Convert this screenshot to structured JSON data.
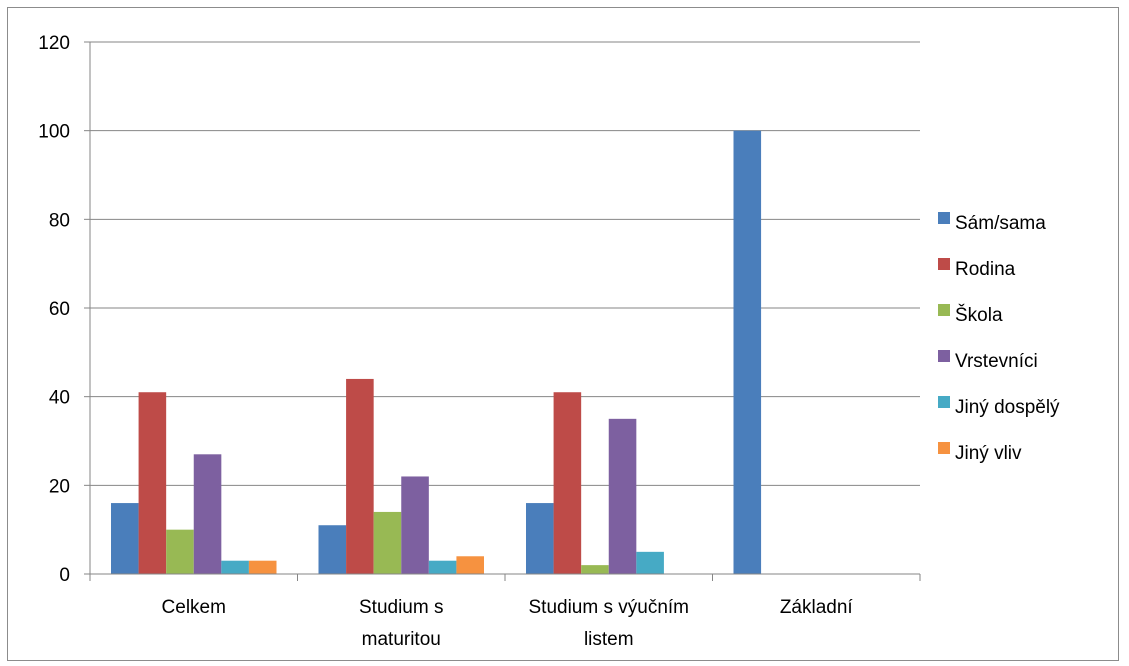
{
  "chart_data": {
    "type": "bar",
    "title": "",
    "xlabel": "",
    "ylabel": "",
    "ylim": [
      0,
      120
    ],
    "yticks": [
      0,
      20,
      40,
      60,
      80,
      100,
      120
    ],
    "grid": true,
    "legend_position": "right",
    "categories": [
      [
        "Celkem"
      ],
      [
        "Studium s",
        "maturitou"
      ],
      [
        "Studium s výučním",
        "listem"
      ],
      [
        "Základní"
      ]
    ],
    "series": [
      {
        "name": "Sám/sama",
        "color": "#4a7ebb",
        "values": [
          16,
          11,
          16,
          100
        ]
      },
      {
        "name": "Rodina",
        "color": "#be4b48",
        "values": [
          41,
          44,
          41,
          0
        ]
      },
      {
        "name": "Škola",
        "color": "#98b954",
        "values": [
          10,
          14,
          2,
          0
        ]
      },
      {
        "name": "Vrstevníci",
        "color": "#7d60a0",
        "values": [
          27,
          22,
          35,
          0
        ]
      },
      {
        "name": "Jiný dospělý",
        "color": "#46aac5",
        "values": [
          3,
          3,
          5,
          0
        ]
      },
      {
        "name": "Jiný vliv",
        "color": "#f69240",
        "values": [
          3,
          4,
          0,
          0
        ]
      }
    ]
  }
}
